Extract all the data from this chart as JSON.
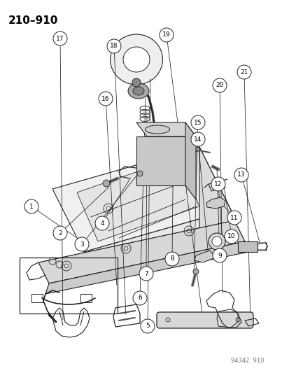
{
  "title": "210–910",
  "watermark": "94342  910",
  "bg_color": "#ffffff",
  "title_fontsize": 11,
  "watermark_fontsize": 6,
  "parts": [
    {
      "id": "1",
      "bx": 0.11,
      "by": 0.555
    },
    {
      "id": "2",
      "bx": 0.21,
      "by": 0.625
    },
    {
      "id": "3",
      "bx": 0.285,
      "by": 0.655
    },
    {
      "id": "4",
      "bx": 0.355,
      "by": 0.6
    },
    {
      "id": "5",
      "bx": 0.51,
      "by": 0.875
    },
    {
      "id": "6",
      "bx": 0.485,
      "by": 0.8
    },
    {
      "id": "7",
      "bx": 0.505,
      "by": 0.735
    },
    {
      "id": "8",
      "bx": 0.595,
      "by": 0.695
    },
    {
      "id": "9",
      "bx": 0.76,
      "by": 0.685
    },
    {
      "id": "10",
      "bx": 0.8,
      "by": 0.635
    },
    {
      "id": "11",
      "bx": 0.81,
      "by": 0.585
    },
    {
      "id": "12",
      "bx": 0.755,
      "by": 0.495
    },
    {
      "id": "13",
      "bx": 0.835,
      "by": 0.47
    },
    {
      "id": "14",
      "bx": 0.685,
      "by": 0.375
    },
    {
      "id": "15",
      "bx": 0.685,
      "by": 0.33
    },
    {
      "id": "16",
      "bx": 0.365,
      "by": 0.265
    },
    {
      "id": "17",
      "bx": 0.21,
      "by": 0.105
    },
    {
      "id": "18",
      "bx": 0.395,
      "by": 0.125
    },
    {
      "id": "19",
      "bx": 0.575,
      "by": 0.095
    },
    {
      "id": "20",
      "bx": 0.76,
      "by": 0.23
    },
    {
      "id": "21",
      "bx": 0.845,
      "by": 0.195
    }
  ]
}
